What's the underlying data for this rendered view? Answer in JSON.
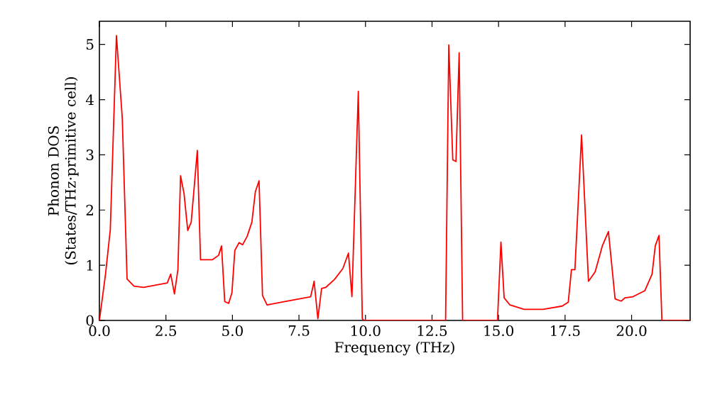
{
  "chart_data": {
    "type": "line",
    "xlabel": "Frequency (THz)",
    "ylabel": "Phonon DOS (States/THz·primitive cell)",
    "x": [
      0,
      0.23,
      0.41,
      0.64,
      0.86,
      1.04,
      1.3,
      1.66,
      2.55,
      2.68,
      2.82,
      2.95,
      3.05,
      3.18,
      3.32,
      3.45,
      3.68,
      3.8,
      4.25,
      4.48,
      4.59,
      4.71,
      4.86,
      4.98,
      5.09,
      5.25,
      5.38,
      5.55,
      5.73,
      5.86,
      6.0,
      6.13,
      6.3,
      6.93,
      7.94,
      8.07,
      8.21,
      8.35,
      8.51,
      8.83,
      9.15,
      9.36,
      9.49,
      9.73,
      9.88,
      9.95,
      13.01,
      13.13,
      13.28,
      13.4,
      13.52,
      13.65,
      14.96,
      15.09,
      15.21,
      15.43,
      15.96,
      16.67,
      17.39,
      17.62,
      17.74,
      17.87,
      18.12,
      18.38,
      18.63,
      18.9,
      19.13,
      19.38,
      19.61,
      19.75,
      20.05,
      20.5,
      20.77,
      20.89,
      21.03,
      21.14,
      22.2
    ],
    "series": [
      {
        "color": "#ff0000",
        "values": [
          0,
          0.84,
          1.65,
          5.16,
          3.66,
          0.75,
          0.62,
          0.6,
          0.68,
          0.84,
          0.48,
          0.92,
          2.62,
          2.3,
          1.63,
          1.78,
          3.08,
          1.1,
          1.1,
          1.18,
          1.35,
          0.34,
          0.31,
          0.5,
          1.27,
          1.41,
          1.37,
          1.52,
          1.78,
          2.33,
          2.53,
          0.45,
          0.28,
          0.34,
          0.43,
          0.71,
          0.03,
          0.58,
          0.6,
          0.74,
          0.94,
          1.22,
          0.43,
          4.15,
          0.03,
          0,
          0,
          4.99,
          2.91,
          2.88,
          4.85,
          0,
          0,
          1.42,
          0.41,
          0.28,
          0.2,
          0.2,
          0.26,
          0.33,
          0.92,
          0.92,
          3.36,
          0.71,
          0.88,
          1.35,
          1.61,
          0.39,
          0.35,
          0.41,
          0.43,
          0.54,
          0.84,
          1.35,
          1.54,
          0,
          0
        ]
      }
    ],
    "xlim": [
      0,
      22.2
    ],
    "ylim": [
      0,
      5.42
    ],
    "xticks": [
      {
        "value": 0,
        "label": "0.0"
      },
      2.5,
      {
        "value": 5,
        "label": "5.0"
      },
      7.5,
      {
        "value": 10,
        "label": "10.0"
      },
      12.5,
      {
        "value": 15,
        "label": "15.0"
      },
      17.5,
      {
        "value": 20,
        "label": "20.0"
      }
    ],
    "yticks": [
      0,
      1,
      2,
      3,
      4,
      5
    ],
    "marker": "none",
    "line_style": "solid"
  }
}
